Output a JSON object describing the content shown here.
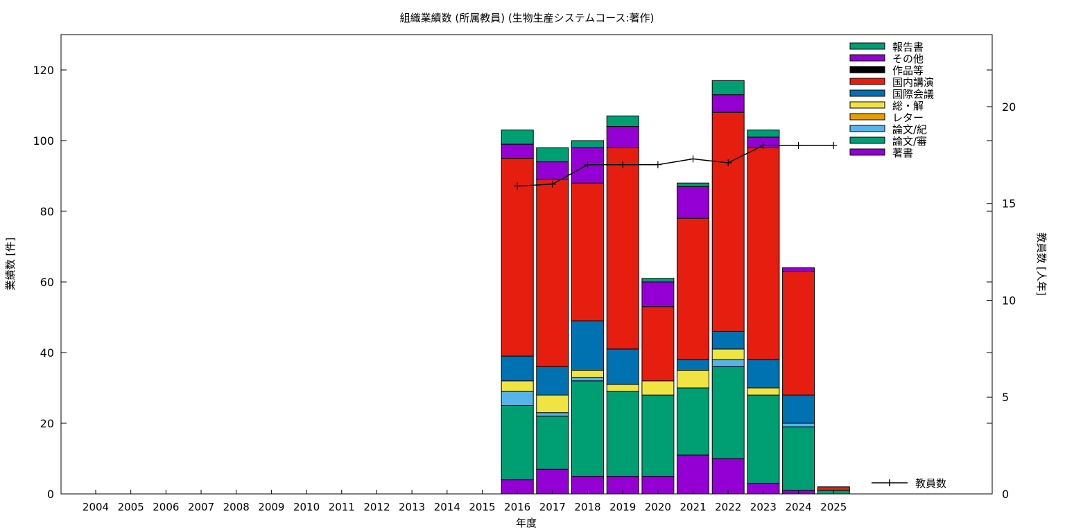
{
  "chart_data": {
    "type": "bar",
    "stacked": true,
    "title": "組織業績数 (所属教員) (生物生産システムコース:著作)",
    "xlabel": "年度",
    "ylabel": "業績数 [件]",
    "y2label": "教員数 [人年]",
    "ylim": [
      0,
      130
    ],
    "y2lim": [
      0,
      23.72
    ],
    "yticks": [
      0,
      20,
      40,
      60,
      80,
      100,
      120
    ],
    "y2ticks": [
      0,
      5,
      10,
      15,
      20
    ],
    "categories": [
      "2004",
      "2005",
      "2006",
      "2007",
      "2008",
      "2009",
      "2010",
      "2011",
      "2012",
      "2013",
      "2014",
      "2015",
      "2016",
      "2017",
      "2018",
      "2019",
      "2020",
      "2021",
      "2022",
      "2023",
      "2024",
      "2025"
    ],
    "legend_position": "top-right",
    "series": [
      {
        "name": "著書",
        "color": "#9400d3",
        "values": [
          0,
          0,
          0,
          0,
          0,
          0,
          0,
          0,
          0,
          0,
          0,
          0,
          4,
          7,
          5,
          5,
          5,
          11,
          10,
          3,
          1,
          0
        ]
      },
      {
        "name": "論文/審",
        "color": "#009e73",
        "values": [
          0,
          0,
          0,
          0,
          0,
          0,
          0,
          0,
          0,
          0,
          0,
          0,
          21,
          15,
          27,
          24,
          23,
          19,
          26,
          25,
          18,
          1
        ]
      },
      {
        "name": "論文/紀",
        "color": "#56b4e9",
        "values": [
          0,
          0,
          0,
          0,
          0,
          0,
          0,
          0,
          0,
          0,
          0,
          0,
          4,
          1,
          1,
          0,
          0,
          0,
          2,
          0,
          1,
          0
        ]
      },
      {
        "name": "レター",
        "color": "#e69f00",
        "values": [
          0,
          0,
          0,
          0,
          0,
          0,
          0,
          0,
          0,
          0,
          0,
          0,
          0,
          0,
          0,
          0,
          0,
          0,
          0,
          0,
          0,
          0
        ]
      },
      {
        "name": "総・解",
        "color": "#f0e442",
        "values": [
          0,
          0,
          0,
          0,
          0,
          0,
          0,
          0,
          0,
          0,
          0,
          0,
          3,
          5,
          2,
          2,
          4,
          5,
          3,
          2,
          0,
          0
        ]
      },
      {
        "name": "国際会議",
        "color": "#0072b2",
        "values": [
          0,
          0,
          0,
          0,
          0,
          0,
          0,
          0,
          0,
          0,
          0,
          0,
          7,
          8,
          14,
          10,
          0,
          3,
          5,
          8,
          8,
          0
        ]
      },
      {
        "name": "国内講演",
        "color": "#e51e10",
        "values": [
          0,
          0,
          0,
          0,
          0,
          0,
          0,
          0,
          0,
          0,
          0,
          0,
          56,
          53,
          39,
          57,
          21,
          40,
          62,
          60,
          35,
          1
        ]
      },
      {
        "name": "作品等",
        "color": "#000000",
        "values": [
          0,
          0,
          0,
          0,
          0,
          0,
          0,
          0,
          0,
          0,
          0,
          0,
          0,
          0,
          0,
          0,
          0,
          0,
          0,
          0,
          0,
          0
        ]
      },
      {
        "name": "その他",
        "color": "#9400d3",
        "values": [
          0,
          0,
          0,
          0,
          0,
          0,
          0,
          0,
          0,
          0,
          0,
          0,
          4,
          5,
          10,
          6,
          7,
          9,
          5,
          3,
          1,
          0
        ]
      },
      {
        "name": "報告書",
        "color": "#009e73",
        "values": [
          0,
          0,
          0,
          0,
          0,
          0,
          0,
          0,
          0,
          0,
          0,
          0,
          4,
          4,
          2,
          3,
          1,
          1,
          4,
          2,
          0,
          0
        ]
      }
    ],
    "line_series": {
      "name": "教員数",
      "axis": "right",
      "color": "#000000",
      "x": [
        "2016",
        "2017",
        "2018",
        "2019",
        "2020",
        "2021",
        "2022",
        "2023",
        "2024",
        "2025"
      ],
      "values": [
        15.9,
        16.0,
        17.0,
        17.0,
        17.0,
        17.3,
        17.1,
        18.0,
        18.0,
        18.0
      ]
    }
  }
}
